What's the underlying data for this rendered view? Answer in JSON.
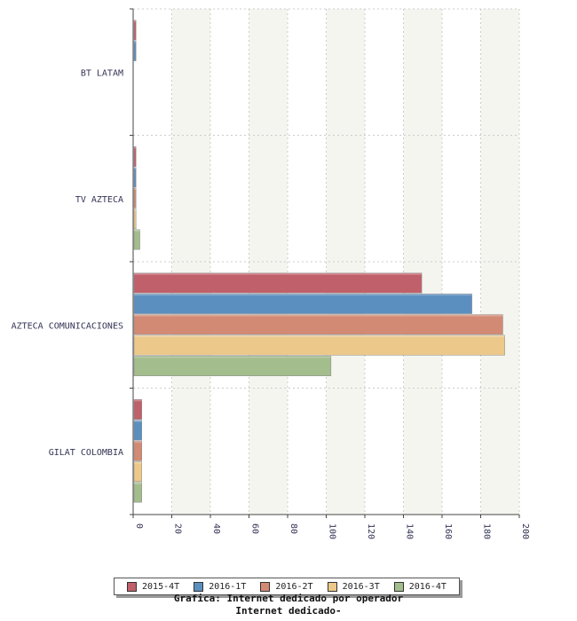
{
  "chart_data": {
    "type": "bar",
    "orientation": "horizontal",
    "categories": [
      "BT LATAM",
      "TV AZTECA",
      "AZTECA COMUNICACIONES",
      "GILAT COLOMBIA"
    ],
    "series": [
      {
        "name": "2015-4T",
        "color": "#c0606a",
        "values": [
          1,
          1,
          149,
          4
        ]
      },
      {
        "name": "2016-1T",
        "color": "#5b8fbf",
        "values": [
          1,
          1,
          175,
          4
        ]
      },
      {
        "name": "2016-2T",
        "color": "#d38a74",
        "values": [
          0,
          1,
          191,
          4
        ]
      },
      {
        "name": "2016-3T",
        "color": "#ecc98a",
        "values": [
          0,
          1,
          192,
          4
        ]
      },
      {
        "name": "2016-4T",
        "color": "#a3bd8c",
        "values": [
          0,
          3,
          102,
          4
        ]
      }
    ],
    "xlim": [
      0,
      200
    ],
    "xticks": [
      "0",
      "20",
      "40",
      "60",
      "80",
      "100",
      "120",
      "140",
      "160",
      "180",
      "200"
    ],
    "grid": true,
    "legend_position": "bottom"
  },
  "caption": {
    "line1": "Grafica: Internet dedicado por operador",
    "line2": "Internet dedicado-"
  }
}
